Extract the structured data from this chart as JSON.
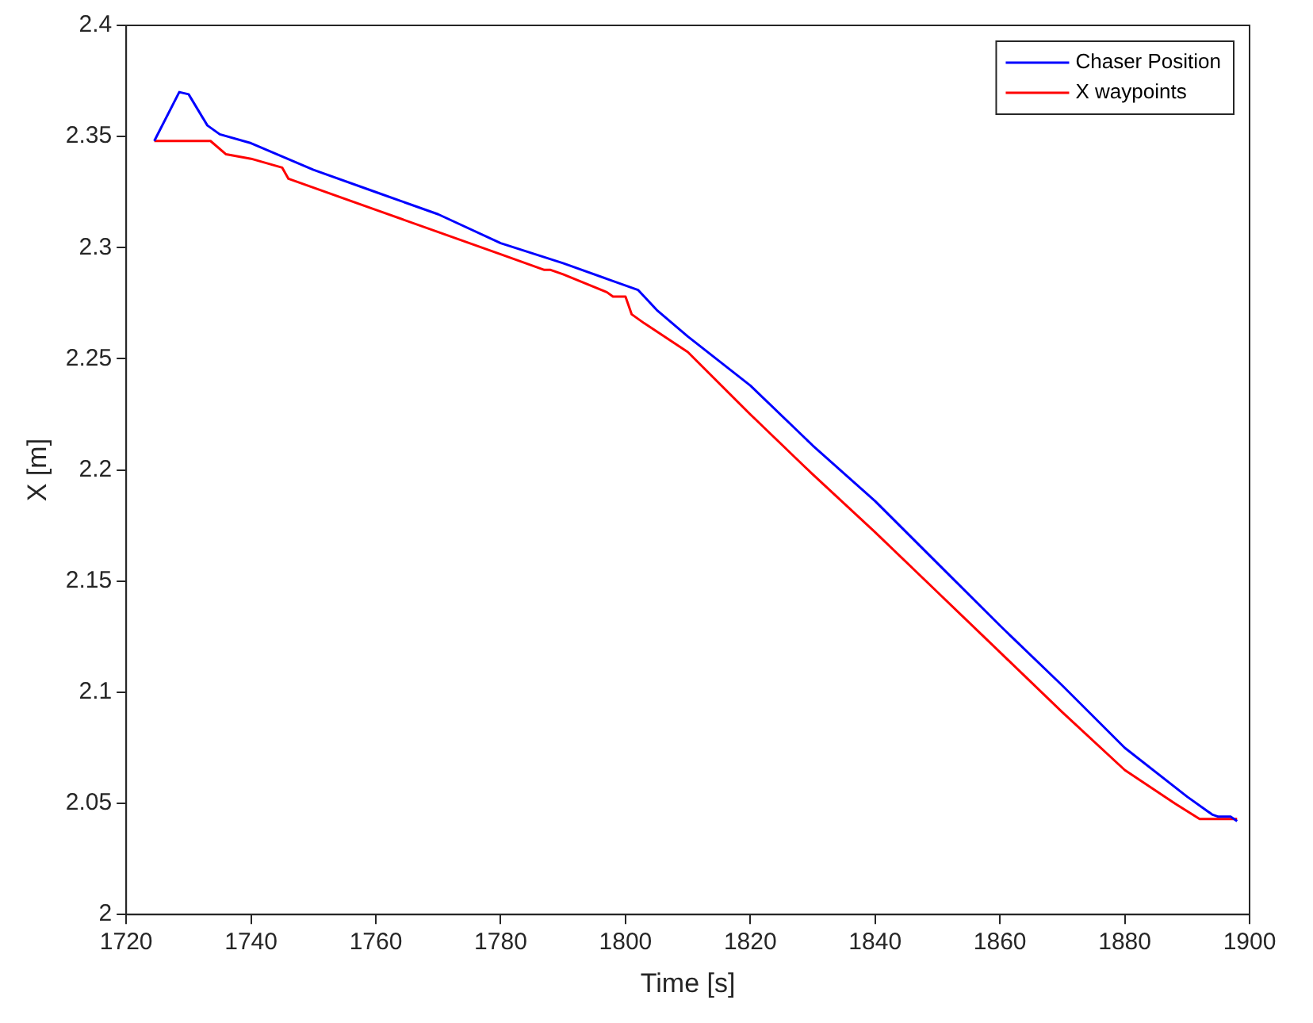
{
  "chart_data": {
    "type": "line",
    "xlabel": "Time [s]",
    "ylabel": "X [m]",
    "xlim": [
      1720,
      1900
    ],
    "xticks": [
      1720,
      1740,
      1760,
      1780,
      1800,
      1820,
      1840,
      1860,
      1880,
      1900
    ],
    "ylim": [
      2,
      2.4
    ],
    "yticks": [
      2,
      2.05,
      2.1,
      2.15,
      2.2,
      2.25,
      2.3,
      2.35,
      2.4
    ],
    "grid": false,
    "legend": "top right",
    "marker": "none",
    "line_style": "solid",
    "series": [
      {
        "name": "Chaser Position",
        "color": "#0000ff",
        "x": [
          1724.5,
          1728.5,
          1730,
          1733,
          1735,
          1740,
          1750,
          1760,
          1770,
          1780,
          1790,
          1797,
          1802,
          1805,
          1810,
          1820,
          1830,
          1840,
          1850,
          1860,
          1870,
          1880,
          1890,
          1894,
          1895,
          1897,
          1898
        ],
        "values": [
          2.348,
          2.37,
          2.369,
          2.355,
          2.351,
          2.347,
          2.335,
          2.325,
          2.315,
          2.302,
          2.293,
          2.286,
          2.281,
          2.272,
          2.26,
          2.238,
          2.211,
          2.186,
          2.158,
          2.13,
          2.103,
          2.075,
          2.053,
          2.045,
          2.044,
          2.044,
          2.042
        ]
      },
      {
        "name": "X waypoints",
        "color": "#ff0000",
        "x": [
          1724.5,
          1733.5,
          1736,
          1740,
          1745,
          1746,
          1760,
          1770,
          1780,
          1787,
          1788,
          1790,
          1797,
          1798,
          1800,
          1801,
          1803,
          1810,
          1820,
          1830,
          1840,
          1850,
          1860,
          1870,
          1880,
          1888,
          1892,
          1898
        ],
        "values": [
          2.348,
          2.348,
          2.342,
          2.34,
          2.336,
          2.331,
          2.317,
          2.307,
          2.297,
          2.29,
          2.29,
          2.288,
          2.28,
          2.278,
          2.278,
          2.27,
          2.266,
          2.253,
          2.225,
          2.198,
          2.172,
          2.145,
          2.118,
          2.091,
          2.065,
          2.05,
          2.043,
          2.043
        ]
      }
    ]
  }
}
